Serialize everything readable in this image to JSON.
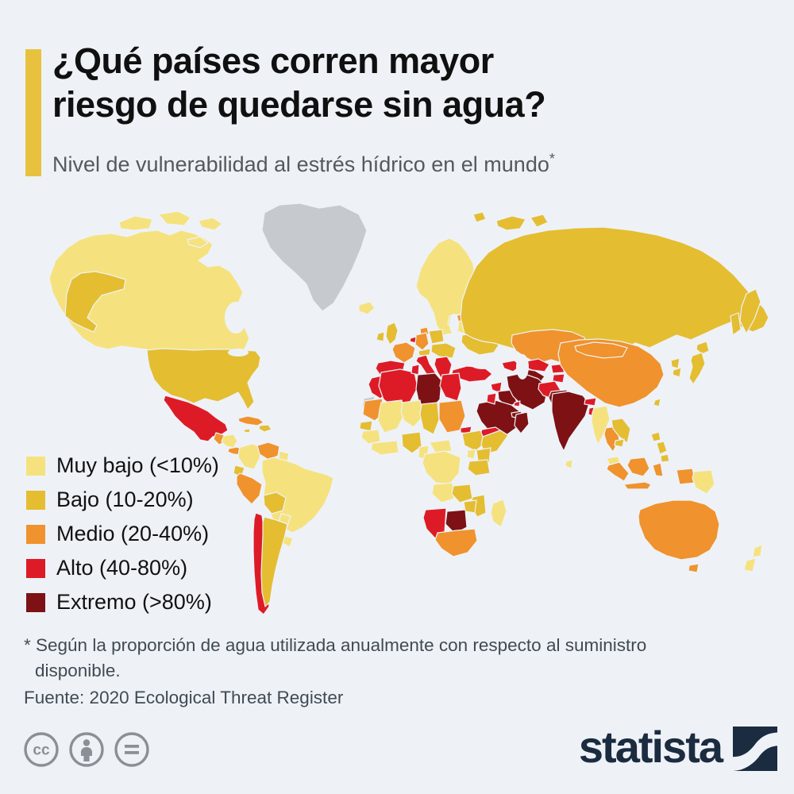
{
  "page": {
    "background": "#eef2f7"
  },
  "header": {
    "accent_color": "#e8c23e",
    "title_line1": "¿Qué países corren mayor",
    "title_line2": "riesgo de quedarse sin agua?",
    "subtitle": "Nivel de vulnerabilidad al estrés hídrico en el mundo",
    "subtitle_asterisk": "*"
  },
  "chart_data": {
    "type": "choropleth",
    "title": "¿Qué países corren mayor riesgo de quedarse sin agua?",
    "subtitle": "Nivel de vulnerabilidad al estrés hídrico en el mundo*",
    "legend_position": "left-overlay",
    "border_color": "#eef2f7",
    "no_data_color": "#c6c9ce",
    "categories": [
      {
        "key": "muy_bajo",
        "label": "Muy bajo (<10%)",
        "range": "<10%",
        "color": "#f5e27e"
      },
      {
        "key": "bajo",
        "label": "Bajo (10-20%)",
        "range": "10-20%",
        "color": "#e4bd31"
      },
      {
        "key": "medio",
        "label": "Medio (20-40%)",
        "range": "20-40%",
        "color": "#f0922d"
      },
      {
        "key": "alto",
        "label": "Alto (40-80%)",
        "range": "40-80%",
        "color": "#dd1b26"
      },
      {
        "key": "extremo",
        "label": "Extremo (>80%)",
        "range": ">80%",
        "color": "#7d1114"
      }
    ],
    "regions": [
      {
        "id": "greenland",
        "category": "sin_datos"
      },
      {
        "id": "canada",
        "category": "muy_bajo"
      },
      {
        "id": "alaska",
        "category": "bajo"
      },
      {
        "id": "usa",
        "category": "bajo"
      },
      {
        "id": "mexico",
        "category": "alto"
      },
      {
        "id": "guatemala",
        "category": "medio"
      },
      {
        "id": "honduras_nicaragua",
        "category": "muy_bajo"
      },
      {
        "id": "costa_panama",
        "category": "medio"
      },
      {
        "id": "cuba",
        "category": "medio"
      },
      {
        "id": "hispaniola",
        "category": "bajo"
      },
      {
        "id": "jamaica",
        "category": "bajo"
      },
      {
        "id": "colombia",
        "category": "muy_bajo"
      },
      {
        "id": "venezuela",
        "category": "medio"
      },
      {
        "id": "guyanas",
        "category": "muy_bajo"
      },
      {
        "id": "ecuador",
        "category": "bajo"
      },
      {
        "id": "peru",
        "category": "medio"
      },
      {
        "id": "brazil",
        "category": "muy_bajo"
      },
      {
        "id": "bolivia",
        "category": "bajo"
      },
      {
        "id": "paraguay",
        "category": "muy_bajo"
      },
      {
        "id": "chile",
        "category": "alto"
      },
      {
        "id": "argentina",
        "category": "bajo"
      },
      {
        "id": "uruguay",
        "category": "muy_bajo"
      },
      {
        "id": "iceland",
        "category": "muy_bajo"
      },
      {
        "id": "scandinavia",
        "category": "muy_bajo"
      },
      {
        "id": "svalbard",
        "category": "bajo"
      },
      {
        "id": "novaya_zemlya",
        "category": "bajo"
      },
      {
        "id": "uk",
        "category": "bajo"
      },
      {
        "id": "ireland",
        "category": "bajo"
      },
      {
        "id": "denmark",
        "category": "medio"
      },
      {
        "id": "france",
        "category": "medio"
      },
      {
        "id": "spain",
        "category": "alto"
      },
      {
        "id": "germany",
        "category": "medio"
      },
      {
        "id": "benelux",
        "category": "alto"
      },
      {
        "id": "italy",
        "category": "alto"
      },
      {
        "id": "sicily",
        "category": "alto"
      },
      {
        "id": "alpine",
        "category": "bajo"
      },
      {
        "id": "poland",
        "category": "bajo"
      },
      {
        "id": "east_europe",
        "category": "bajo"
      },
      {
        "id": "balkans",
        "category": "alto"
      },
      {
        "id": "greece",
        "category": "alto"
      },
      {
        "id": "baltics_belarus",
        "category": "muy_bajo"
      },
      {
        "id": "estonia",
        "category": "medio"
      },
      {
        "id": "ukraine",
        "category": "bajo"
      },
      {
        "id": "russia",
        "category": "bajo"
      },
      {
        "id": "kamchatka",
        "category": "bajo"
      },
      {
        "id": "sakhalin",
        "category": "bajo"
      },
      {
        "id": "kazakhstan",
        "category": "medio"
      },
      {
        "id": "uzbekistan",
        "category": "alto"
      },
      {
        "id": "turkmenistan",
        "category": "extremo"
      },
      {
        "id": "kyrgyzstan",
        "category": "alto"
      },
      {
        "id": "tajikistan",
        "category": "alto"
      },
      {
        "id": "turkey",
        "category": "alto"
      },
      {
        "id": "caucasus",
        "category": "alto"
      },
      {
        "id": "syria",
        "category": "alto"
      },
      {
        "id": "iraq",
        "category": "extremo"
      },
      {
        "id": "iran",
        "category": "extremo"
      },
      {
        "id": "afghanistan",
        "category": "alto"
      },
      {
        "id": "pakistan",
        "category": "extremo"
      },
      {
        "id": "saudi_arabia",
        "category": "extremo"
      },
      {
        "id": "jordan_israel",
        "category": "alto"
      },
      {
        "id": "kuwait",
        "category": "alto"
      },
      {
        "id": "uae",
        "category": "extremo"
      },
      {
        "id": "oman",
        "category": "extremo"
      },
      {
        "id": "yemen",
        "category": "alto"
      },
      {
        "id": "morocco",
        "category": "alto"
      },
      {
        "id": "western_sahara",
        "category": "sin_datos"
      },
      {
        "id": "algeria",
        "category": "alto"
      },
      {
        "id": "tunisia",
        "category": "alto"
      },
      {
        "id": "libya",
        "category": "extremo"
      },
      {
        "id": "egypt",
        "category": "alto"
      },
      {
        "id": "mauritania",
        "category": "medio"
      },
      {
        "id": "mali",
        "category": "muy_bajo"
      },
      {
        "id": "niger",
        "category": "muy_bajo"
      },
      {
        "id": "chad",
        "category": "bajo"
      },
      {
        "id": "sudan",
        "category": "medio"
      },
      {
        "id": "eritrea",
        "category": "alto"
      },
      {
        "id": "senegal",
        "category": "bajo"
      },
      {
        "id": "guinea",
        "category": "muy_bajo"
      },
      {
        "id": "ghana_ivory",
        "category": "muy_bajo"
      },
      {
        "id": "nigeria",
        "category": "bajo"
      },
      {
        "id": "cameroon",
        "category": "muy_bajo"
      },
      {
        "id": "central_africa",
        "category": "muy_bajo"
      },
      {
        "id": "ethiopia",
        "category": "bajo"
      },
      {
        "id": "somalia",
        "category": "bajo"
      },
      {
        "id": "kenya",
        "category": "bajo"
      },
      {
        "id": "uganda",
        "category": "muy_bajo"
      },
      {
        "id": "dr_congo",
        "category": "muy_bajo"
      },
      {
        "id": "tanzania",
        "category": "bajo"
      },
      {
        "id": "angola",
        "category": "muy_bajo"
      },
      {
        "id": "zambia",
        "category": "bajo"
      },
      {
        "id": "mozambique",
        "category": "bajo"
      },
      {
        "id": "zimbabwe",
        "category": "bajo"
      },
      {
        "id": "namibia",
        "category": "alto"
      },
      {
        "id": "botswana",
        "category": "extremo"
      },
      {
        "id": "south_africa",
        "category": "medio"
      },
      {
        "id": "madagascar",
        "category": "muy_bajo"
      },
      {
        "id": "india",
        "category": "extremo"
      },
      {
        "id": "nepal",
        "category": "alto"
      },
      {
        "id": "bangladesh",
        "category": "alto"
      },
      {
        "id": "sri_lanka",
        "category": "muy_bajo"
      },
      {
        "id": "myanmar",
        "category": "muy_bajo"
      },
      {
        "id": "thailand",
        "category": "medio"
      },
      {
        "id": "laos_vietnam",
        "category": "bajo"
      },
      {
        "id": "cambodia",
        "category": "bajo"
      },
      {
        "id": "malaysia",
        "category": "muy_bajo"
      },
      {
        "id": "china",
        "category": "medio"
      },
      {
        "id": "mongolia",
        "category": "medio"
      },
      {
        "id": "korea",
        "category": "bajo"
      },
      {
        "id": "japan",
        "category": "bajo"
      },
      {
        "id": "taiwan",
        "category": "bajo"
      },
      {
        "id": "philippines",
        "category": "bajo"
      },
      {
        "id": "indonesia_sumatra",
        "category": "medio"
      },
      {
        "id": "indonesia_java",
        "category": "medio"
      },
      {
        "id": "indonesia_borneo",
        "category": "medio"
      },
      {
        "id": "indonesia_sulawesi",
        "category": "medio"
      },
      {
        "id": "indonesia_papua",
        "category": "medio"
      },
      {
        "id": "papua_new_guinea",
        "category": "muy_bajo"
      },
      {
        "id": "australia",
        "category": "medio"
      },
      {
        "id": "tasmania",
        "category": "medio"
      },
      {
        "id": "new_zealand",
        "category": "muy_bajo"
      }
    ]
  },
  "footnote": {
    "text": "* Según la proporción de agua utilizada anualmente con respecto al suministro disponible."
  },
  "source": {
    "text": "Fuente: 2020 Ecological Threat Register"
  },
  "footer": {
    "license_icons": [
      "cc",
      "attribution",
      "no-derivatives"
    ],
    "brand_wordmark": "statista",
    "brand_color": "#1b2b40"
  }
}
